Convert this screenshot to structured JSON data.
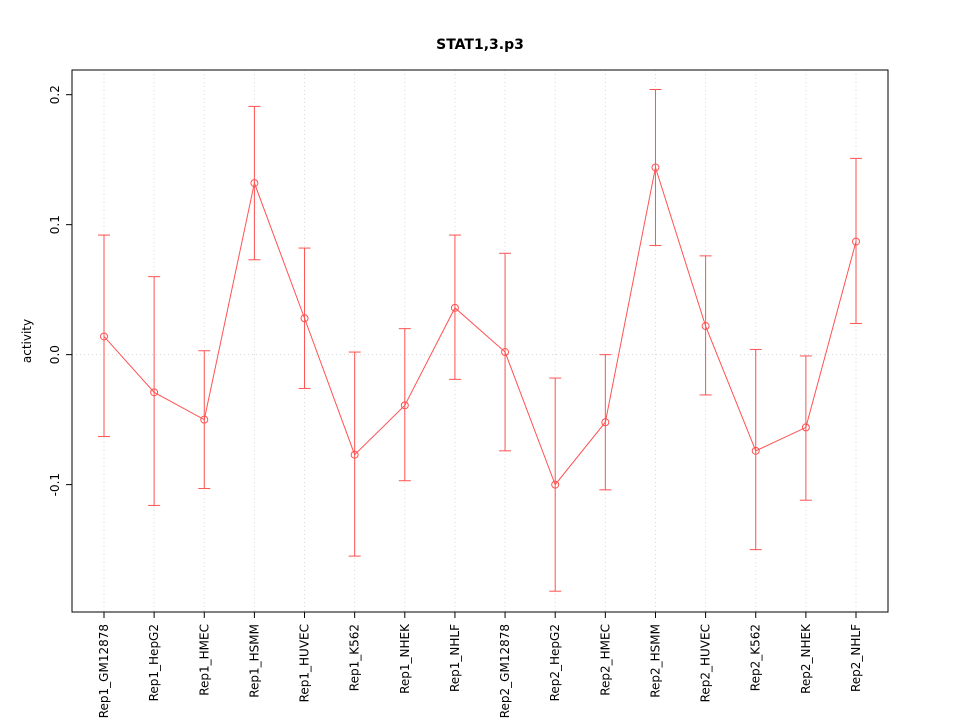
{
  "chart_data": {
    "type": "line",
    "title": "STAT1,3.p3",
    "xlabel": "",
    "ylabel": "activity",
    "legend": "none",
    "categories": [
      "Rep1_GM12878",
      "Rep1_HepG2",
      "Rep1_HMEC",
      "Rep1_HSMM",
      "Rep1_HUVEC",
      "Rep1_K562",
      "Rep1_NHEK",
      "Rep1_NHLF",
      "Rep2_GM12878",
      "Rep2_HepG2",
      "Rep2_HMEC",
      "Rep2_HSMM",
      "Rep2_HUVEC",
      "Rep2_K562",
      "Rep2_NHEK",
      "Rep2_NHLF"
    ],
    "series": [
      {
        "name": "activity",
        "values": [
          0.014,
          -0.029,
          -0.05,
          0.132,
          0.028,
          -0.077,
          -0.039,
          0.036,
          0.002,
          -0.1,
          -0.052,
          0.144,
          0.022,
          -0.074,
          -0.056,
          0.087
        ],
        "error_lower": [
          -0.063,
          -0.116,
          -0.103,
          0.073,
          -0.026,
          -0.155,
          -0.097,
          -0.019,
          -0.074,
          -0.182,
          -0.104,
          0.084,
          -0.031,
          -0.15,
          -0.112,
          0.024
        ],
        "error_upper": [
          0.092,
          0.06,
          0.003,
          0.191,
          0.082,
          0.002,
          0.02,
          0.092,
          0.078,
          -0.018,
          0.0,
          0.204,
          0.076,
          0.004,
          -0.001,
          0.151
        ]
      }
    ],
    "ylim": [
      -0.198,
      0.219
    ],
    "yticks": [
      -0.1,
      0.0,
      0.1,
      0.2
    ],
    "ytick_labels": [
      "-0.1",
      "0.0",
      "0.1",
      "0.2"
    ],
    "grid": {
      "vertical_per_category": true,
      "horizontal_zero_line": true,
      "style": "dotted"
    },
    "point_style": "open-circle",
    "colors": {
      "series": "#ff5252",
      "grid": "#d8d8d8",
      "axis": "#000000",
      "background": "#ffffff"
    }
  }
}
